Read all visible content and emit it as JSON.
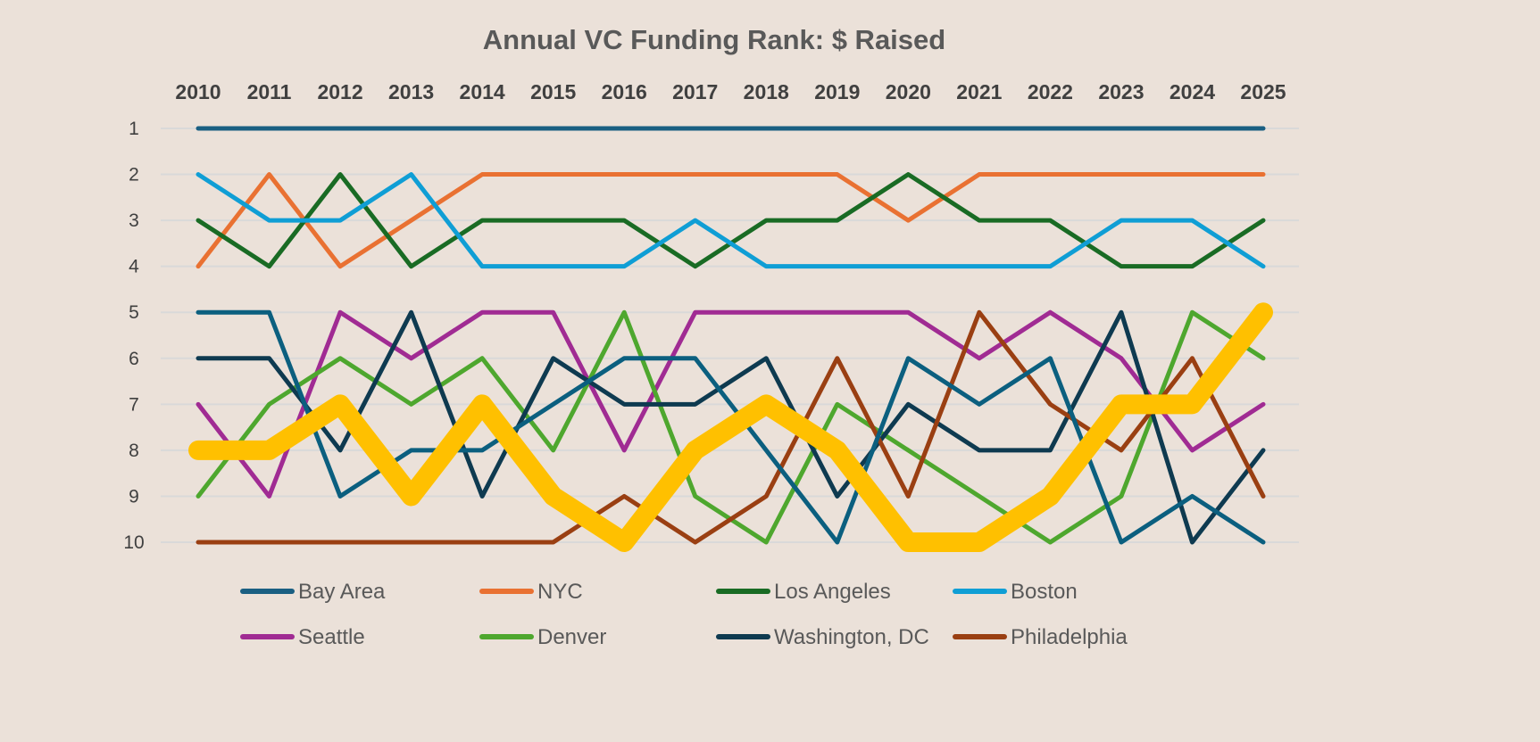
{
  "chart_data": {
    "type": "line",
    "subtype": "bump",
    "title": "Annual VC Funding Rank: $ Raised",
    "x": [
      "2010",
      "2011",
      "2012",
      "2013",
      "2014",
      "2015",
      "2016",
      "2017",
      "2018",
      "2019",
      "2020",
      "2021",
      "2022",
      "2023",
      "2024",
      "2025"
    ],
    "x_axis_position": "top",
    "y_ticks": [
      "1",
      "2",
      "3",
      "4",
      "5",
      "6",
      "7",
      "8",
      "9",
      "10"
    ],
    "ylim": [
      1,
      10
    ],
    "y_reversed": true,
    "grid": true,
    "legend_position": "bottom",
    "series": [
      {
        "name": "Bay Area",
        "color": "#1a5f82",
        "values": [
          1,
          1,
          1,
          1,
          1,
          1,
          1,
          1,
          1,
          1,
          1,
          1,
          1,
          1,
          1,
          1
        ]
      },
      {
        "name": "NYC",
        "color": "#e97132",
        "values": [
          4,
          2,
          4,
          3,
          2,
          2,
          2,
          2,
          2,
          2,
          3,
          2,
          2,
          2,
          2,
          2
        ]
      },
      {
        "name": "Los Angeles",
        "color": "#196b24",
        "values": [
          3,
          4,
          2,
          4,
          3,
          3,
          3,
          4,
          3,
          3,
          2,
          3,
          3,
          4,
          4,
          3
        ]
      },
      {
        "name": "Boston",
        "color": "#0f9ed5",
        "values": [
          2,
          3,
          3,
          2,
          4,
          4,
          4,
          3,
          4,
          4,
          4,
          4,
          4,
          3,
          3,
          4
        ]
      },
      {
        "name": "Seattle",
        "color": "#a02b93",
        "values": [
          7,
          9,
          5,
          6,
          5,
          5,
          8,
          5,
          5,
          5,
          5,
          6,
          5,
          6,
          8,
          7
        ]
      },
      {
        "name": "Denver",
        "color": "#4ea72e",
        "values": [
          9,
          7,
          6,
          7,
          6,
          8,
          5,
          9,
          10,
          7,
          8,
          9,
          10,
          9,
          5,
          6
        ]
      },
      {
        "name": "Washington, DC",
        "color": "#0e3a50",
        "values": [
          6,
          6,
          8,
          5,
          9,
          6,
          7,
          7,
          6,
          9,
          7,
          8,
          8,
          5,
          10,
          8
        ]
      },
      {
        "name": "Philadelphia",
        "color": "#9a3f12",
        "values": [
          10,
          10,
          10,
          10,
          10,
          10,
          9,
          10,
          9,
          6,
          9,
          5,
          7,
          8,
          6,
          9
        ]
      },
      {
        "color": "#0b5f7f",
        "values": [
          5,
          5,
          9,
          8,
          8,
          7,
          6,
          6,
          8,
          10,
          6,
          7,
          6,
          10,
          9,
          10
        ]
      },
      {
        "color": "#ffc000",
        "highlight": true,
        "values": [
          8,
          8,
          7,
          9,
          7,
          9,
          10,
          8,
          7,
          8,
          10,
          10,
          9,
          7,
          7,
          5
        ]
      }
    ]
  }
}
